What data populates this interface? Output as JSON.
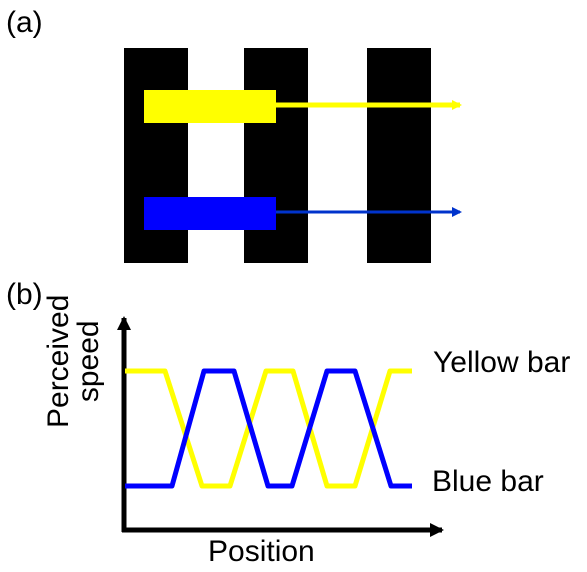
{
  "panels": {
    "a": "(a)",
    "b": "(b)"
  },
  "colors": {
    "yellow": "#ffff00",
    "blue": "#0000ff",
    "yellow_arrow": "#ffff00",
    "blue_arrow": "#0033cc",
    "stripe": "#000000"
  },
  "graph": {
    "x_label": "Position",
    "y_label_line1": "Perceived",
    "y_label_line2": "speed",
    "yellow_label": "Yellow bar",
    "blue_label": "Blue bar"
  }
}
